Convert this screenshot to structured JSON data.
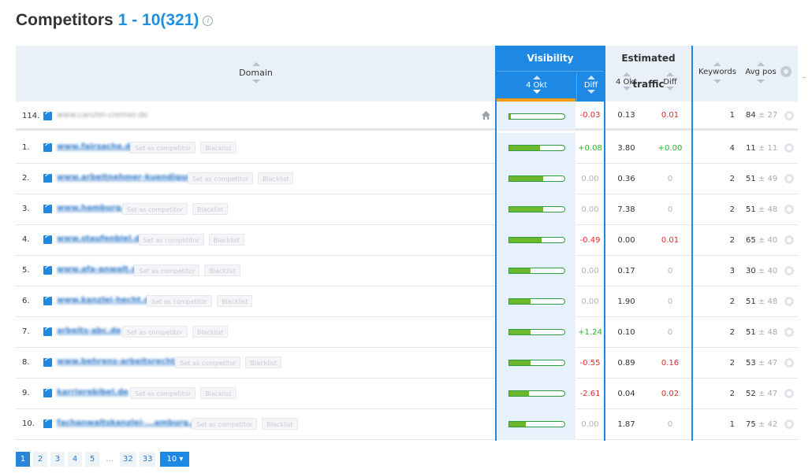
{
  "header": {
    "title": "Competitors",
    "range": "1 - 10(321)",
    "info_symbol": "i"
  },
  "columns": {
    "domain": "Domain",
    "visibility": "Visibility",
    "visibility_date": "4 Okt",
    "visibility_diff": "Diff",
    "traffic": "Estimated traffic",
    "traffic_date": "4 Okt",
    "traffic_diff": "Diff",
    "keywords": "Keywords",
    "avg_pos": "Avg pos"
  },
  "own_row": {
    "num": "114.",
    "domain": "www.canzlei-cremer.de",
    "visibility": 0.03,
    "vis_diff": "-0.03",
    "traffic": "0.13",
    "traffic_diff": "0.01",
    "keywords": "1",
    "avg": "84",
    "avg_pm": "± 27"
  },
  "buttons": {
    "set_competitor": "Set as competitor",
    "blacklist": "Blacklist"
  },
  "rows": [
    {
      "num": "1.",
      "domain": "www.fairsache.de",
      "visibility": 0.55,
      "vis_diff": "+0.08",
      "vis_diff_color": "green",
      "traffic": "3.80",
      "traffic_diff": "+0.00",
      "traffic_diff_color": "green",
      "keywords": "4",
      "avg": "11",
      "avg_pm": "± 11"
    },
    {
      "num": "2.",
      "domain": "www.arbeitnehmer-kuendigung.de",
      "visibility": 0.62,
      "vis_diff": "0.00",
      "vis_diff_color": "grey",
      "traffic": "0.36",
      "traffic_diff": "0",
      "traffic_diff_color": "grey",
      "keywords": "2",
      "avg": "51",
      "avg_pm": "± 49"
    },
    {
      "num": "3.",
      "domain": "www.hamburg.de",
      "visibility": 0.62,
      "vis_diff": "0.00",
      "vis_diff_color": "grey",
      "traffic": "7.38",
      "traffic_diff": "0",
      "traffic_diff_color": "grey",
      "keywords": "2",
      "avg": "51",
      "avg_pm": "± 48"
    },
    {
      "num": "4.",
      "domain": "www.staufenbiel.de",
      "visibility": 0.58,
      "vis_diff": "-0.49",
      "vis_diff_color": "red",
      "traffic": "0.00",
      "traffic_diff": "0.01",
      "traffic_diff_color": "red",
      "keywords": "2",
      "avg": "65",
      "avg_pm": "± 40"
    },
    {
      "num": "5.",
      "domain": "www.afa-anwalt.de",
      "visibility": 0.38,
      "vis_diff": "0.00",
      "vis_diff_color": "grey",
      "traffic": "0.17",
      "traffic_diff": "0",
      "traffic_diff_color": "grey",
      "keywords": "3",
      "avg": "30",
      "avg_pm": "± 40"
    },
    {
      "num": "6.",
      "domain": "www.kanzlei-hecht.de",
      "visibility": 0.38,
      "vis_diff": "0.00",
      "vis_diff_color": "grey",
      "traffic": "1.90",
      "traffic_diff": "0",
      "traffic_diff_color": "grey",
      "keywords": "2",
      "avg": "51",
      "avg_pm": "± 48"
    },
    {
      "num": "7.",
      "domain": "arbeits-abc.de",
      "visibility": 0.38,
      "vis_diff": "+1.24",
      "vis_diff_color": "green",
      "traffic": "0.10",
      "traffic_diff": "0",
      "traffic_diff_color": "grey",
      "keywords": "2",
      "avg": "51",
      "avg_pm": "± 48"
    },
    {
      "num": "8.",
      "domain": "www.behrens-arbeitsrecht.de",
      "visibility": 0.38,
      "vis_diff": "-0.55",
      "vis_diff_color": "red",
      "traffic": "0.89",
      "traffic_diff": "0.16",
      "traffic_diff_color": "red",
      "keywords": "2",
      "avg": "53",
      "avg_pm": "± 47"
    },
    {
      "num": "9.",
      "domain": "karrierebibel.de",
      "visibility": 0.36,
      "vis_diff": "-2.61",
      "vis_diff_color": "red",
      "traffic": "0.04",
      "traffic_diff": "0.02",
      "traffic_diff_color": "red",
      "keywords": "2",
      "avg": "52",
      "avg_pm": "± 47"
    },
    {
      "num": "10.",
      "domain": "fachanwaltskanzlei-...amburg.de",
      "visibility": 0.3,
      "vis_diff": "0.00",
      "vis_diff_color": "grey",
      "traffic": "1.87",
      "traffic_diff": "0",
      "traffic_diff_color": "grey",
      "keywords": "1",
      "avg": "75",
      "avg_pm": "± 42"
    }
  ],
  "pagination": {
    "pages": [
      "1",
      "2",
      "3",
      "4",
      "5",
      "...",
      "32",
      "33"
    ],
    "active": "1",
    "page_size": "10"
  },
  "colors": {
    "accent": "#1e88e5",
    "bar_fill": "#6bb82a",
    "negative": "#e02b2b",
    "positive": "#2db52d",
    "sort_indicator": "#f39c12"
  }
}
